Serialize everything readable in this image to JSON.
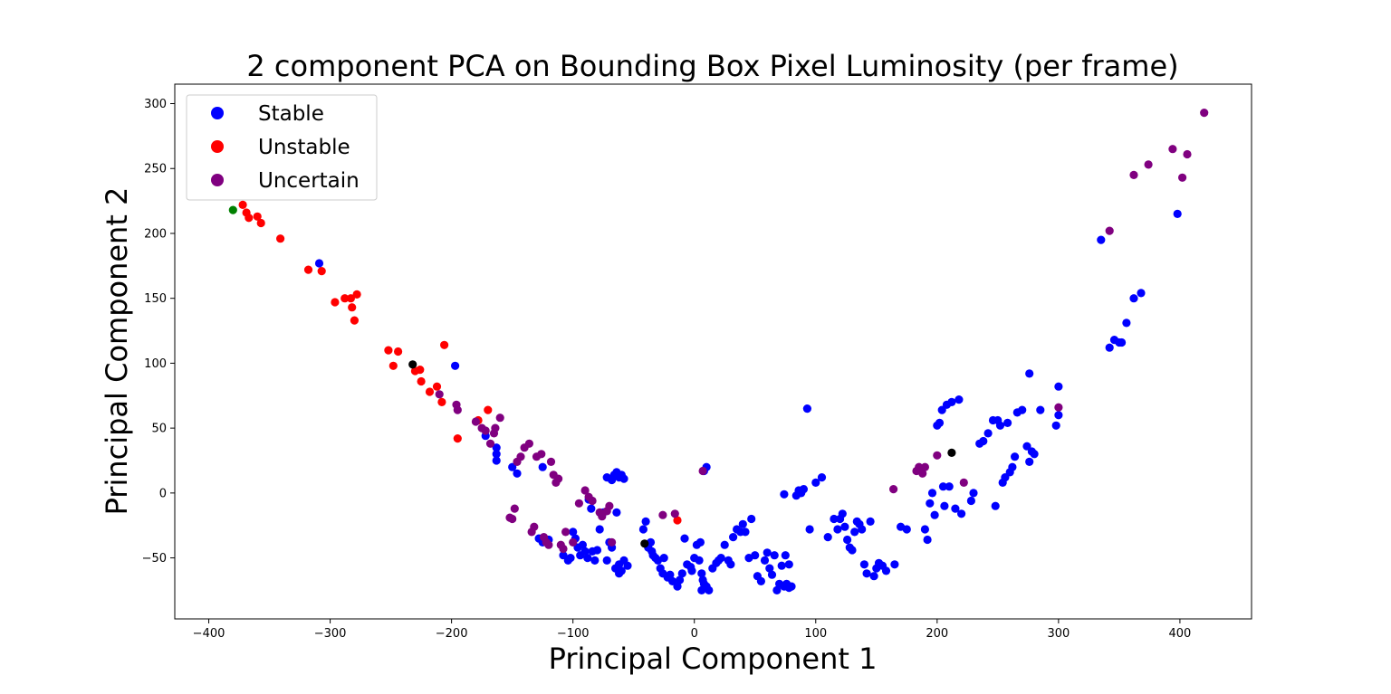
{
  "chart_data": {
    "type": "scatter",
    "title": "2 component PCA on Bounding Box Pixel Luminosity (per frame)",
    "xlabel": "Principal Component 1",
    "ylabel": "Principal Component 2",
    "xlim": [
      -400,
      420
    ],
    "ylim": [
      -100,
      310
    ],
    "xticks": [
      -400,
      -300,
      -200,
      -100,
      0,
      100,
      200,
      300,
      400
    ],
    "yticks": [
      -50,
      0,
      50,
      100,
      150,
      200,
      250,
      300
    ],
    "grid": false,
    "legend": {
      "placement": "top-left",
      "entries": [
        {
          "name": "Stable",
          "color": "#0000ff"
        },
        {
          "name": "Unstable",
          "color": "#ff0000"
        },
        {
          "name": "Uncertain",
          "color": "#800080"
        }
      ]
    },
    "series": [
      {
        "name": "Stable",
        "color": "#0000ff",
        "points": [
          [
            -309,
            177
          ],
          [
            -197,
            98
          ],
          [
            -172,
            44
          ],
          [
            -163,
            35
          ],
          [
            -163,
            30
          ],
          [
            -163,
            25
          ],
          [
            -150,
            20
          ],
          [
            -146,
            15
          ],
          [
            -125,
            20
          ],
          [
            -128,
            -35
          ],
          [
            -125,
            -38
          ],
          [
            -120,
            -36
          ],
          [
            -108,
            -48
          ],
          [
            -104,
            -52
          ],
          [
            -102,
            -50
          ],
          [
            -100,
            -30
          ],
          [
            -98,
            -35
          ],
          [
            -96,
            -42
          ],
          [
            -94,
            -48
          ],
          [
            -92,
            -40
          ],
          [
            -90,
            -45
          ],
          [
            -88,
            -50
          ],
          [
            -87,
            -5
          ],
          [
            -85,
            -12
          ],
          [
            -84,
            -45
          ],
          [
            -82,
            -52
          ],
          [
            -80,
            -44
          ],
          [
            -78,
            -28
          ],
          [
            -75,
            -15
          ],
          [
            -72,
            -52
          ],
          [
            -70,
            -38
          ],
          [
            -68,
            -42
          ],
          [
            -72,
            12
          ],
          [
            -68,
            10
          ],
          [
            -66,
            14
          ],
          [
            -64,
            16
          ],
          [
            -62,
            12
          ],
          [
            -60,
            14
          ],
          [
            -58,
            11
          ],
          [
            -55,
            -56
          ],
          [
            -65,
            -58
          ],
          [
            -62,
            -55
          ],
          [
            -60,
            -60
          ],
          [
            -58,
            -52
          ],
          [
            -62,
            -62
          ],
          [
            -64,
            -15
          ],
          [
            -42,
            -28
          ],
          [
            -40,
            -22
          ],
          [
            -38,
            -42
          ],
          [
            -36,
            -38
          ],
          [
            -35,
            -45
          ],
          [
            -34,
            -48
          ],
          [
            -32,
            -50
          ],
          [
            -30,
            -52
          ],
          [
            -28,
            -58
          ],
          [
            -26,
            -62
          ],
          [
            -25,
            -50
          ],
          [
            -22,
            -65
          ],
          [
            -20,
            -63
          ],
          [
            -18,
            -68
          ],
          [
            -14,
            -72
          ],
          [
            -12,
            -67
          ],
          [
            -10,
            -62
          ],
          [
            -8,
            -35
          ],
          [
            -6,
            -55
          ],
          [
            -3,
            -57
          ],
          [
            -2,
            -60
          ],
          [
            0,
            -50
          ],
          [
            2,
            -40
          ],
          [
            5,
            -38
          ],
          [
            4,
            -52
          ],
          [
            6,
            -62
          ],
          [
            7,
            -67
          ],
          [
            8,
            -70
          ],
          [
            10,
            -72
          ],
          [
            12,
            -75
          ],
          [
            6,
            -75
          ],
          [
            10,
            20
          ],
          [
            8,
            17
          ],
          [
            15,
            -58
          ],
          [
            18,
            -54
          ],
          [
            20,
            -52
          ],
          [
            22,
            -50
          ],
          [
            25,
            -40
          ],
          [
            28,
            -52
          ],
          [
            30,
            -55
          ],
          [
            32,
            -34
          ],
          [
            35,
            -28
          ],
          [
            38,
            -30
          ],
          [
            40,
            -24
          ],
          [
            42,
            -30
          ],
          [
            45,
            -50
          ],
          [
            47,
            -20
          ],
          [
            50,
            -48
          ],
          [
            52,
            -64
          ],
          [
            55,
            -68
          ],
          [
            58,
            -52
          ],
          [
            60,
            -46
          ],
          [
            62,
            -58
          ],
          [
            64,
            -63
          ],
          [
            66,
            -48
          ],
          [
            68,
            -75
          ],
          [
            70,
            -70
          ],
          [
            72,
            -56
          ],
          [
            74,
            -72
          ],
          [
            76,
            -70
          ],
          [
            78,
            -73
          ],
          [
            80,
            -72
          ],
          [
            75,
            -48
          ],
          [
            78,
            -55
          ],
          [
            74,
            -1
          ],
          [
            84,
            -2
          ],
          [
            86,
            2
          ],
          [
            88,
            0
          ],
          [
            90,
            3
          ],
          [
            93,
            65
          ],
          [
            95,
            -28
          ],
          [
            100,
            8
          ],
          [
            105,
            12
          ],
          [
            110,
            -34
          ],
          [
            115,
            -20
          ],
          [
            118,
            -28
          ],
          [
            120,
            -20
          ],
          [
            122,
            -16
          ],
          [
            124,
            -26
          ],
          [
            126,
            -36
          ],
          [
            128,
            -42
          ],
          [
            130,
            -44
          ],
          [
            132,
            -30
          ],
          [
            134,
            -22
          ],
          [
            136,
            -24
          ],
          [
            138,
            -28
          ],
          [
            140,
            -55
          ],
          [
            142,
            -62
          ],
          [
            145,
            -22
          ],
          [
            148,
            -64
          ],
          [
            150,
            -58
          ],
          [
            152,
            -54
          ],
          [
            155,
            -56
          ],
          [
            158,
            -60
          ],
          [
            165,
            -55
          ],
          [
            170,
            -26
          ],
          [
            175,
            -28
          ],
          [
            190,
            -28
          ],
          [
            192,
            -36
          ],
          [
            194,
            -8
          ],
          [
            196,
            0
          ],
          [
            198,
            -17
          ],
          [
            200,
            52
          ],
          [
            202,
            54
          ],
          [
            204,
            64
          ],
          [
            205,
            5
          ],
          [
            206,
            -10
          ],
          [
            208,
            68
          ],
          [
            210,
            5
          ],
          [
            212,
            70
          ],
          [
            215,
            -12
          ],
          [
            218,
            72
          ],
          [
            220,
            -16
          ],
          [
            228,
            -6
          ],
          [
            230,
            0
          ],
          [
            235,
            38
          ],
          [
            238,
            40
          ],
          [
            242,
            46
          ],
          [
            246,
            56
          ],
          [
            250,
            56
          ],
          [
            248,
            -10
          ],
          [
            252,
            52
          ],
          [
            254,
            8
          ],
          [
            256,
            12
          ],
          [
            258,
            54
          ],
          [
            260,
            16
          ],
          [
            262,
            20
          ],
          [
            264,
            28
          ],
          [
            266,
            62
          ],
          [
            270,
            64
          ],
          [
            274,
            36
          ],
          [
            276,
            92
          ],
          [
            276,
            24
          ],
          [
            278,
            32
          ],
          [
            280,
            30
          ],
          [
            285,
            64
          ],
          [
            298,
            52
          ],
          [
            300,
            60
          ],
          [
            300,
            82
          ],
          [
            335,
            195
          ],
          [
            342,
            112
          ],
          [
            346,
            118
          ],
          [
            350,
            116
          ],
          [
            352,
            116
          ],
          [
            356,
            131
          ],
          [
            362,
            150
          ],
          [
            368,
            154
          ],
          [
            398,
            215
          ]
        ]
      },
      {
        "name": "Unstable",
        "color": "#ff0000",
        "points": [
          [
            -372,
            222
          ],
          [
            -369,
            216
          ],
          [
            -367,
            212
          ],
          [
            -360,
            213
          ],
          [
            -357,
            208
          ],
          [
            -341,
            196
          ],
          [
            -318,
            172
          ],
          [
            -307,
            171
          ],
          [
            -296,
            147
          ],
          [
            -288,
            150
          ],
          [
            -283,
            150
          ],
          [
            -282,
            143
          ],
          [
            -280,
            133
          ],
          [
            -278,
            153
          ],
          [
            -252,
            110
          ],
          [
            -248,
            98
          ],
          [
            -244,
            109
          ],
          [
            -230,
            94
          ],
          [
            -226,
            95
          ],
          [
            -225,
            86
          ],
          [
            -218,
            78
          ],
          [
            -212,
            82
          ],
          [
            -208,
            70
          ],
          [
            -206,
            114
          ],
          [
            -195,
            42
          ],
          [
            -178,
            56
          ],
          [
            -170,
            64
          ],
          [
            -14,
            -21
          ]
        ]
      },
      {
        "name": "Uncertain",
        "color": "#800080",
        "points": [
          [
            -210,
            76
          ],
          [
            -195,
            64
          ],
          [
            -196,
            68
          ],
          [
            -180,
            55
          ],
          [
            -175,
            50
          ],
          [
            -172,
            48
          ],
          [
            -168,
            38
          ],
          [
            -165,
            46
          ],
          [
            -164,
            50
          ],
          [
            -160,
            58
          ],
          [
            -152,
            -19
          ],
          [
            -150,
            -20
          ],
          [
            -148,
            -12
          ],
          [
            -146,
            24
          ],
          [
            -143,
            28
          ],
          [
            -140,
            35
          ],
          [
            -136,
            38
          ],
          [
            -134,
            -30
          ],
          [
            -132,
            -26
          ],
          [
            -130,
            28
          ],
          [
            -126,
            30
          ],
          [
            -124,
            -34
          ],
          [
            -122,
            -38
          ],
          [
            -120,
            -40
          ],
          [
            -118,
            24
          ],
          [
            -116,
            14
          ],
          [
            -114,
            8
          ],
          [
            -112,
            11
          ],
          [
            -110,
            -40
          ],
          [
            -108,
            -43
          ],
          [
            -106,
            -30
          ],
          [
            -100,
            -38
          ],
          [
            -95,
            -8
          ],
          [
            -90,
            2
          ],
          [
            -87,
            -3
          ],
          [
            -84,
            -6
          ],
          [
            -78,
            -15
          ],
          [
            -76,
            -18
          ],
          [
            -72,
            -14
          ],
          [
            -70,
            -10
          ],
          [
            -68,
            -38
          ],
          [
            -26,
            -17
          ],
          [
            -16,
            -16
          ],
          [
            7,
            17
          ],
          [
            164,
            3
          ],
          [
            183,
            17
          ],
          [
            185,
            20
          ],
          [
            188,
            15
          ],
          [
            190,
            20
          ],
          [
            200,
            29
          ],
          [
            222,
            8
          ],
          [
            300,
            66
          ],
          [
            342,
            202
          ],
          [
            362,
            245
          ],
          [
            374,
            253
          ],
          [
            394,
            265
          ],
          [
            402,
            243
          ],
          [
            406,
            261
          ],
          [
            420,
            293
          ]
        ]
      },
      {
        "name": "",
        "color": "#008000",
        "points": [
          [
            -380,
            218
          ]
        ]
      },
      {
        "name": "",
        "color": "#000000",
        "points": [
          [
            -232,
            99
          ],
          [
            -41,
            -39
          ],
          [
            212,
            31
          ]
        ]
      }
    ]
  }
}
